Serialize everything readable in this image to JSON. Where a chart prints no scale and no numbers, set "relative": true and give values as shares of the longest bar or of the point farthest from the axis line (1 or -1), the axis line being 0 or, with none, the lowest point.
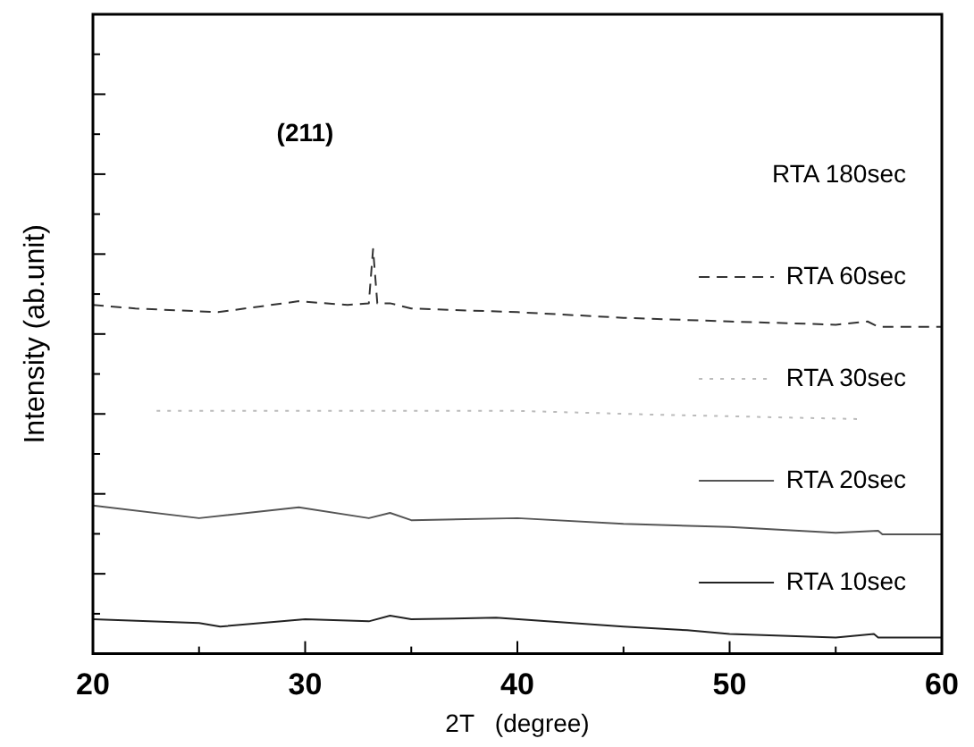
{
  "chart_data": {
    "type": "line",
    "relative": true,
    "xlabel": "2T   (degree)",
    "ylabel": "Intensity (ab.unit)",
    "xlim": [
      20,
      60
    ],
    "xticks": [
      20,
      {
        "value": 25,
        "label": null
      },
      30,
      {
        "value": 35,
        "label": null
      },
      40,
      {
        "value": 45,
        "label": null
      },
      50,
      {
        "value": 55,
        "label": null
      },
      60
    ],
    "grid": false,
    "legend": "right",
    "marker": "none",
    "annotations": [
      "(211)",
      "RTA 180sec"
    ],
    "series": [
      {
        "name": "RTA 60sec",
        "color": "#333333",
        "line_style": "dashed",
        "x": [
          20,
          22,
          25.9,
          29.7,
          32,
          33,
          33.2,
          33.4,
          34,
          35,
          40,
          45,
          50,
          55,
          56.5,
          57,
          60
        ],
        "values": [
          0.862,
          0.853,
          0.844,
          0.871,
          0.862,
          0.866,
          1,
          0.866,
          0.866,
          0.853,
          0.844,
          0.83,
          0.821,
          0.813,
          0.821,
          0.808,
          0.808
        ]
      },
      {
        "name": "RTA 30sec",
        "color": "#bbbbbb",
        "line_style": "dotted",
        "x": [
          23,
          30,
          35,
          40,
          47,
          56
        ],
        "values": [
          0.6,
          0.6,
          0.6,
          0.6,
          0.59,
          0.58
        ]
      },
      {
        "name": "RTA 20sec",
        "color": "#555555",
        "line_style": "solid",
        "x": [
          20,
          25,
          29.7,
          33,
          34,
          35,
          40,
          45,
          50,
          55,
          57,
          57.2,
          60
        ],
        "values": [
          0.366,
          0.335,
          0.362,
          0.335,
          0.348,
          0.33,
          0.335,
          0.321,
          0.313,
          0.299,
          0.304,
          0.295,
          0.295
        ]
      },
      {
        "name": "RTA 10sec",
        "color": "#222222",
        "line_style": "solid",
        "x": [
          20,
          25,
          26,
          30,
          33,
          34,
          35,
          39,
          45,
          48,
          50,
          55,
          56.8,
          57,
          60
        ],
        "values": [
          0.085,
          0.076,
          0.067,
          0.085,
          0.08,
          0.094,
          0.085,
          0.089,
          0.067,
          0.058,
          0.049,
          0.04,
          0.049,
          0.04,
          0.04
        ]
      }
    ]
  }
}
